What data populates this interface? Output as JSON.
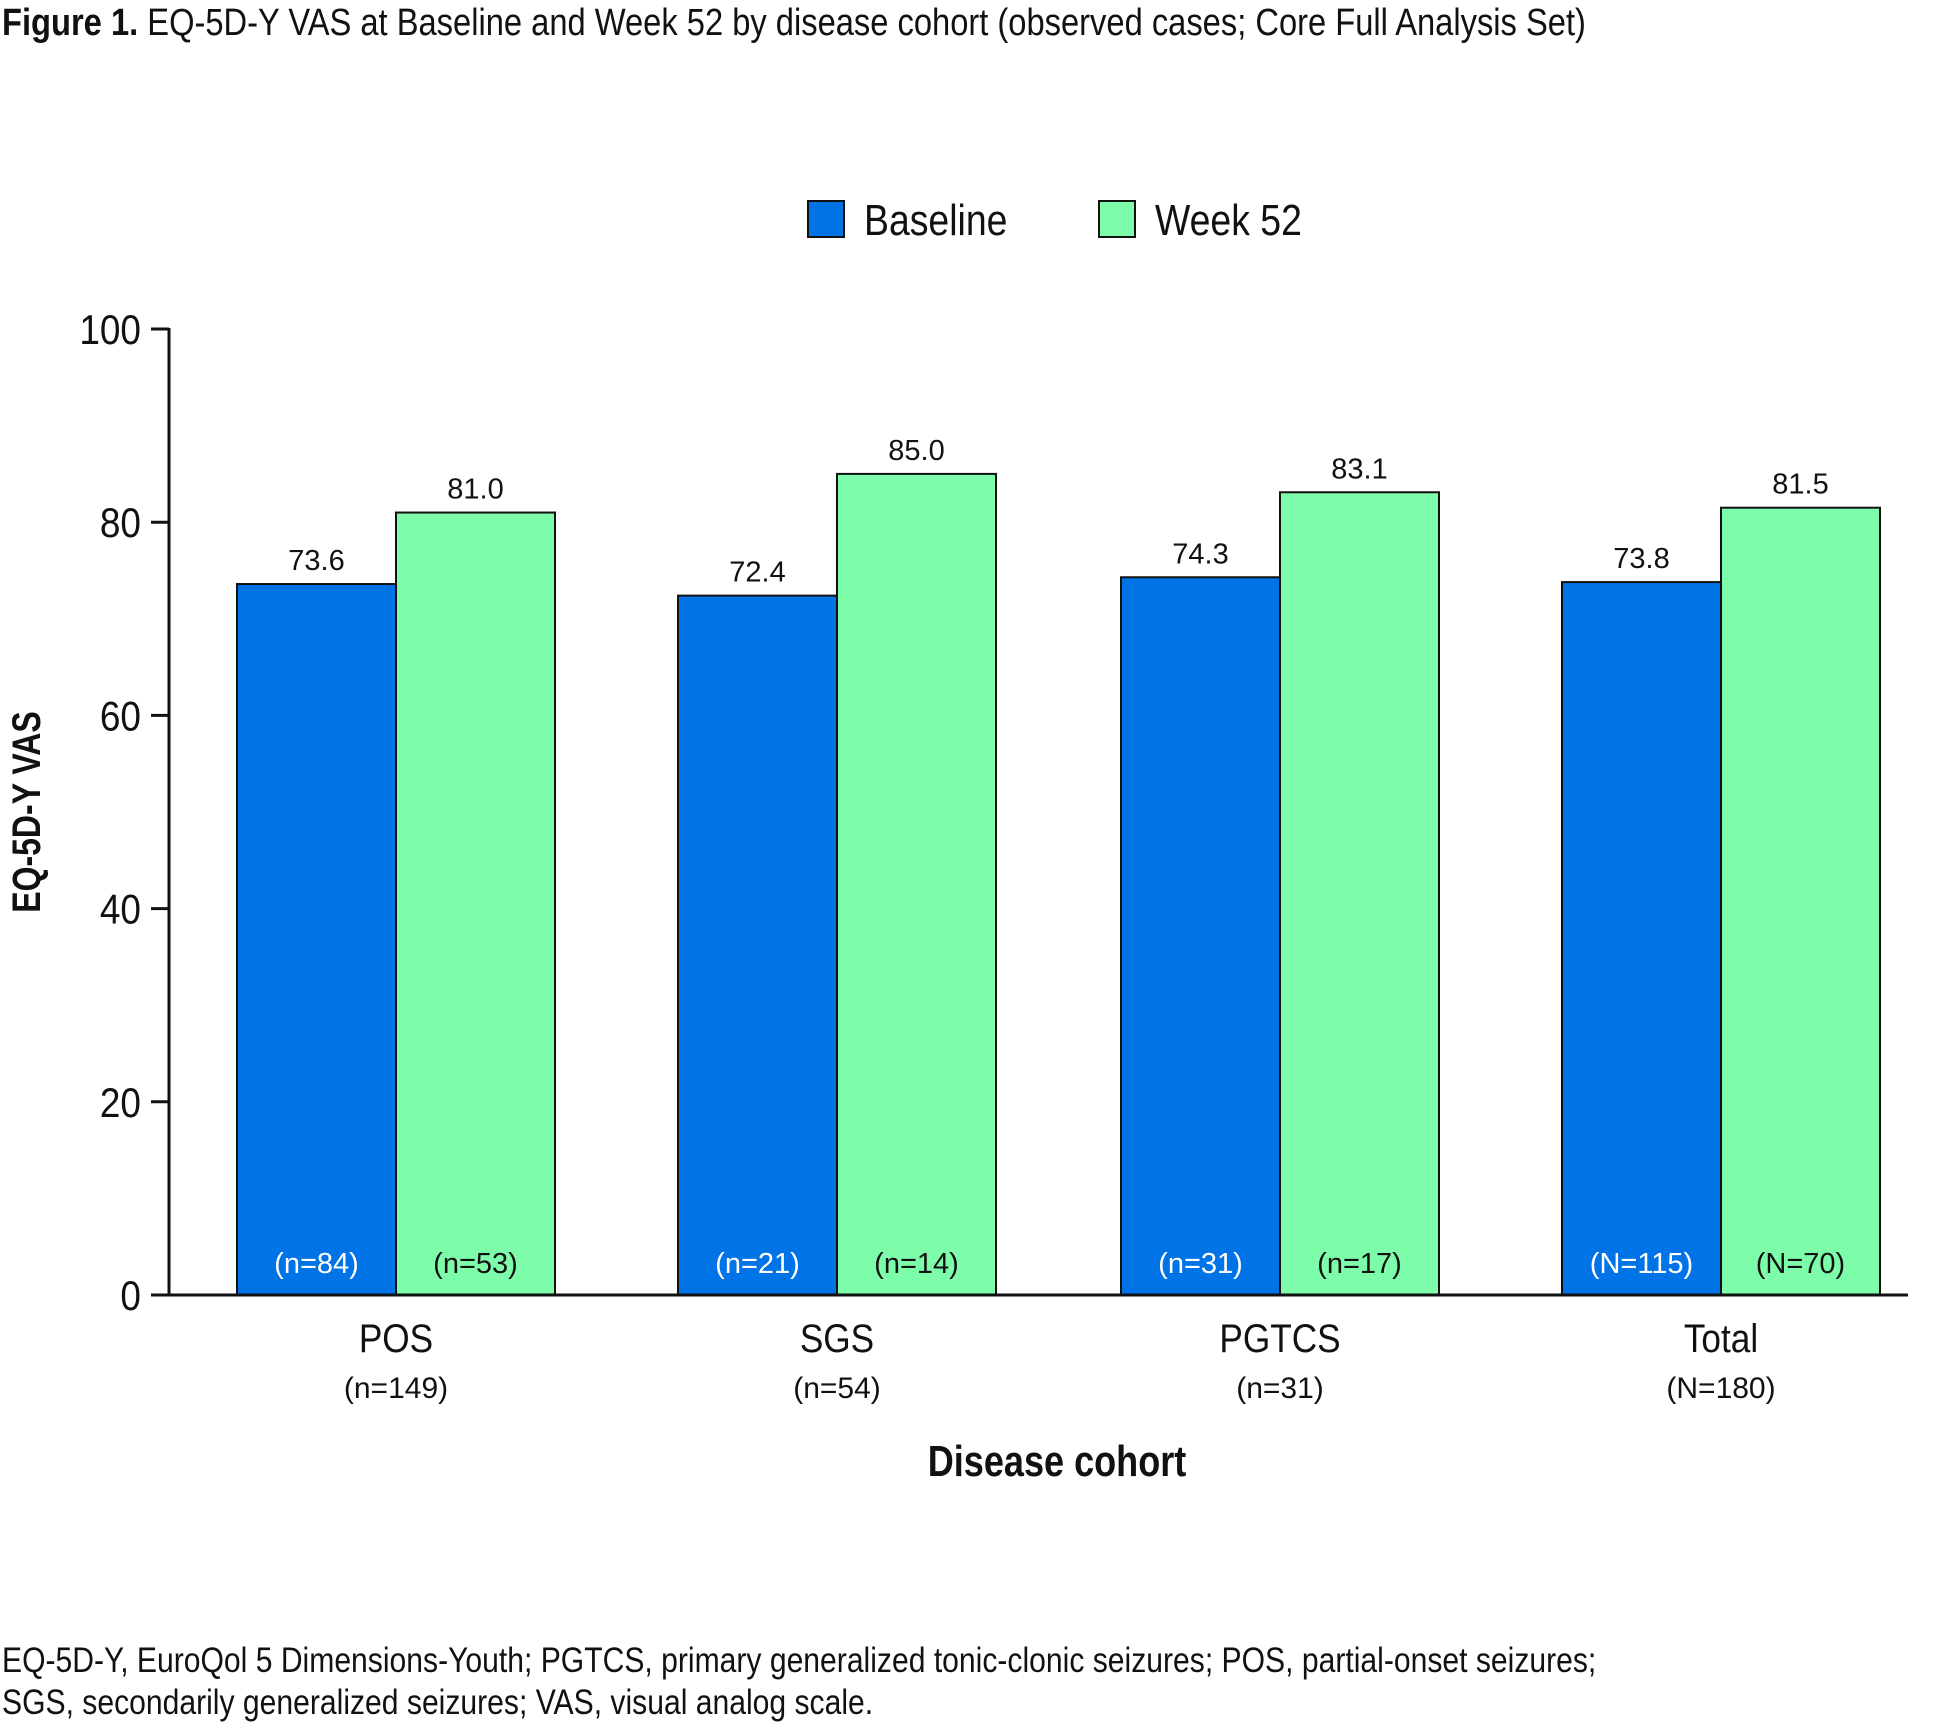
{
  "title": {
    "label": "Figure 1.",
    "text": "EQ-5D-Y VAS at Baseline and Week 52 by disease cohort (observed cases; Core Full Analysis Set)"
  },
  "footnote": [
    "EQ-5D-Y, EuroQol 5 Dimensions-Youth; PGTCS, primary generalized tonic-clonic seizures; POS, partial-onset seizures;",
    "SGS, secondarily generalized seizures; VAS, visual analog scale."
  ],
  "chart_data": {
    "type": "bar",
    "xlabel": "Disease cohort",
    "ylabel": "EQ-5D-Y VAS",
    "ylim": [
      0,
      100
    ],
    "yticks": [
      0,
      20,
      40,
      60,
      80,
      100
    ],
    "grid": false,
    "legend_position": "top-center",
    "categories": [
      "POS",
      "SGS",
      "PGTCS",
      "Total"
    ],
    "category_n": [
      "(n=149)",
      "(n=54)",
      "(n=31)",
      "(N=180)"
    ],
    "series": [
      {
        "name": "Baseline",
        "color": "#0073e6",
        "values": [
          73.6,
          72.4,
          74.3,
          73.8
        ],
        "labels": [
          "73.6",
          "72.4",
          "74.3",
          "73.8"
        ],
        "n": [
          "(n=84)",
          "(n=21)",
          "(n=31)",
          "(N=115)"
        ]
      },
      {
        "name": "Week 52",
        "color": "#7dfcaa",
        "values": [
          81.0,
          85.0,
          83.1,
          81.5
        ],
        "labels": [
          "81.0",
          "85.0",
          "83.1",
          "81.5"
        ],
        "n": [
          "(n=53)",
          "(n=14)",
          "(n=17)",
          "(N=70)"
        ]
      }
    ]
  }
}
